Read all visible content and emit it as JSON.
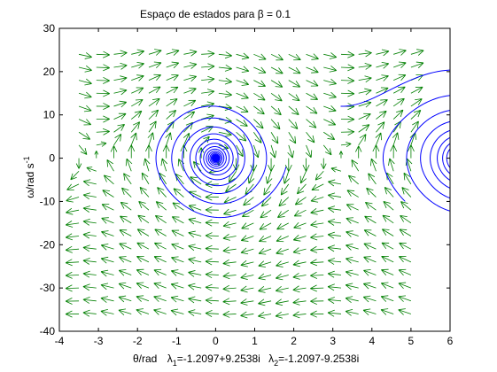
{
  "chart_data": {
    "type": "line",
    "title": "Espaço de estados para β = 0.1",
    "xlabel": "θ/rad",
    "ylabel_main": "ω/rad s",
    "ylabel_sup": "-1",
    "eigen_1": {
      "sym": "λ",
      "sub": "1",
      "value": "=-1.2097+9.2538i"
    },
    "eigen_2": {
      "sym": "λ",
      "sub": "2",
      "value": "=-1.2097-9.2538i"
    },
    "xlim": [
      -4,
      6
    ],
    "ylim": [
      -40,
      30
    ],
    "xticks": [
      "-4",
      "-3",
      "-2",
      "-1",
      "0",
      "1",
      "2",
      "3",
      "4",
      "5",
      "6"
    ],
    "yticks": [
      "30",
      "20",
      "10",
      "0",
      "-10",
      "-20",
      "-30",
      "-40"
    ],
    "quiver_x_range": [
      -3.5,
      5
    ],
    "quiver_y_range": [
      -36,
      24
    ],
    "spiral_decay": -1.2097,
    "spiral_freq": 9.2538,
    "trajectories": [
      {
        "name": "",
        "x0": 4.85,
        "y0": -10
      },
      {
        "name": "",
        "x0": 3.2,
        "y0": 12
      },
      {
        "name": "",
        "x0": 1.8,
        "y0": -2
      }
    ],
    "colors": {
      "trajectory": "#0000ff",
      "quiver": "#007f00",
      "axes": "#000000"
    }
  }
}
